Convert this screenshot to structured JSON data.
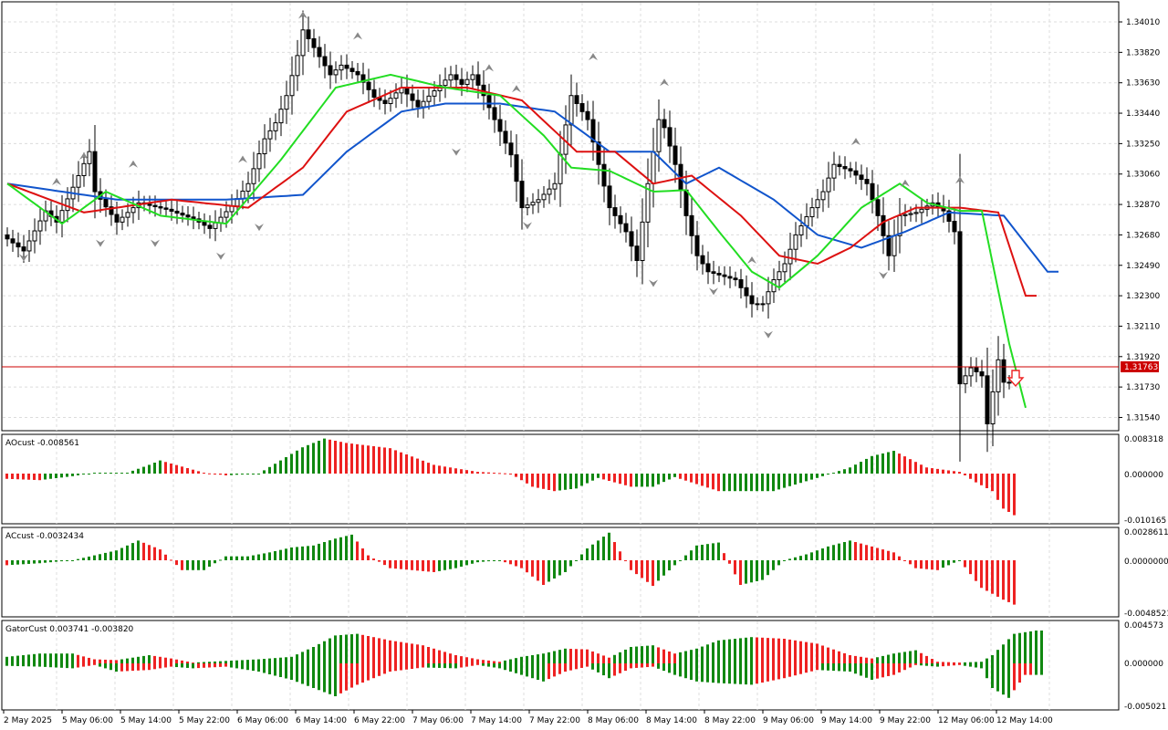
{
  "colors": {
    "background": "#ffffff",
    "grid": "#dcdcdc",
    "bull_candle": "#000000",
    "bear_candle": "#000000",
    "ma_fast": "#22dd22",
    "ma_mid": "#dd1111",
    "ma_slow": "#1155cc",
    "price_line": "#cc0000",
    "hist_up": "#118811",
    "hist_down": "#ee2222",
    "fractal": "#888888",
    "signal_arrow": "#ee2222"
  },
  "main_panel": {
    "price_axis_labels": [
      "1.34010",
      "1.33820",
      "1.33630",
      "1.33440",
      "1.33250",
      "1.33060",
      "1.32870",
      "1.32680",
      "1.32490",
      "1.32300",
      "1.32110",
      "1.31920",
      "1.31730",
      "1.31540"
    ],
    "current_price_label": "1.31763",
    "signal": "sell-arrow-icon"
  },
  "oscillators": [
    {
      "name": "AOcust -0.008561",
      "axis_labels": [
        "0.008318",
        "0.000000",
        "-0.010165"
      ]
    },
    {
      "name": "ACcust -0.0032434",
      "axis_labels": [
        "0.0028611",
        "0.0000000",
        "-0.0048521"
      ]
    },
    {
      "name": "GatorCust 0.003741 -0.003820",
      "axis_labels": [
        "0.004573",
        "0.000000",
        "-0.005021"
      ]
    }
  ],
  "time_axis": [
    "2 May 2025",
    "5 May 06:00",
    "5 May 14:00",
    "5 May 22:00",
    "6 May 06:00",
    "6 May 14:00",
    "6 May 22:00",
    "7 May 06:00",
    "7 May 14:00",
    "7 May 22:00",
    "8 May 06:00",
    "8 May 14:00",
    "8 May 22:00",
    "9 May 06:00",
    "9 May 14:00",
    "9 May 22:00",
    "12 May 06:00",
    "12 May 14:00"
  ],
  "chart_data": {
    "type": "candlestick",
    "timeframe_note": "",
    "price_anchors": [
      [
        0,
        1.3268
      ],
      [
        4,
        1.3258
      ],
      [
        8,
        1.3283
      ],
      [
        10,
        1.3276
      ],
      [
        14,
        1.3305
      ],
      [
        16,
        1.332
      ],
      [
        17,
        1.3295
      ],
      [
        21,
        1.3276
      ],
      [
        25,
        1.3288
      ],
      [
        30,
        1.3284
      ],
      [
        35,
        1.3278
      ],
      [
        38,
        1.3272
      ],
      [
        42,
        1.3286
      ],
      [
        45,
        1.33
      ],
      [
        48,
        1.3328
      ],
      [
        50,
        1.3338
      ],
      [
        52,
        1.3355
      ],
      [
        54,
        1.338
      ],
      [
        55,
        1.3396
      ],
      [
        57,
        1.3385
      ],
      [
        60,
        1.3368
      ],
      [
        62,
        1.3374
      ],
      [
        65,
        1.3368
      ],
      [
        68,
        1.3354
      ],
      [
        70,
        1.335
      ],
      [
        73,
        1.336
      ],
      [
        76,
        1.3348
      ],
      [
        79,
        1.3358
      ],
      [
        82,
        1.3368
      ],
      [
        84,
        1.3362
      ],
      [
        86,
        1.3368
      ],
      [
        88,
        1.3355
      ],
      [
        90,
        1.334
      ],
      [
        93,
        1.3318
      ],
      [
        95,
        1.3285
      ],
      [
        98,
        1.329
      ],
      [
        101,
        1.33
      ],
      [
        104,
        1.3355
      ],
      [
        107,
        1.334
      ],
      [
        109,
        1.3312
      ],
      [
        111,
        1.3285
      ],
      [
        114,
        1.327
      ],
      [
        116,
        1.3252
      ],
      [
        118,
        1.33
      ],
      [
        120,
        1.334
      ],
      [
        121,
        1.3335
      ],
      [
        123,
        1.3312
      ],
      [
        125,
        1.328
      ],
      [
        127,
        1.3255
      ],
      [
        129,
        1.3245
      ],
      [
        131,
        1.3243
      ],
      [
        134,
        1.324
      ],
      [
        137,
        1.3225
      ],
      [
        139,
        1.3225
      ],
      [
        141,
        1.324
      ],
      [
        143,
        1.325
      ],
      [
        145,
        1.3268
      ],
      [
        148,
        1.3285
      ],
      [
        150,
        1.3295
      ],
      [
        152,
        1.3312
      ],
      [
        155,
        1.3308
      ],
      [
        158,
        1.33
      ],
      [
        160,
        1.328
      ],
      [
        162,
        1.3255
      ],
      [
        164,
        1.328
      ],
      [
        167,
        1.3282
      ],
      [
        170,
        1.3288
      ],
      [
        172,
        1.3283
      ],
      [
        174,
        1.327
      ],
      [
        175,
        1.3175
      ],
      [
        177,
        1.3185
      ],
      [
        179,
        1.318
      ],
      [
        180,
        1.315
      ],
      [
        182,
        1.319
      ],
      [
        183,
        1.3176
      ]
    ],
    "ma_fast_anchors": [
      [
        0,
        1.33
      ],
      [
        10,
        1.3275
      ],
      [
        18,
        1.3295
      ],
      [
        28,
        1.328
      ],
      [
        40,
        1.3275
      ],
      [
        50,
        1.3315
      ],
      [
        60,
        1.336
      ],
      [
        70,
        1.3368
      ],
      [
        80,
        1.336
      ],
      [
        90,
        1.3355
      ],
      [
        98,
        1.333
      ],
      [
        103,
        1.331
      ],
      [
        110,
        1.3308
      ],
      [
        118,
        1.3295
      ],
      [
        124,
        1.3296
      ],
      [
        130,
        1.327
      ],
      [
        136,
        1.3245
      ],
      [
        141,
        1.3235
      ],
      [
        148,
        1.3255
      ],
      [
        156,
        1.3285
      ],
      [
        163,
        1.33
      ],
      [
        168,
        1.3288
      ],
      [
        174,
        1.3283
      ],
      [
        178,
        1.3283
      ],
      [
        183,
        1.32
      ],
      [
        186,
        1.316
      ]
    ],
    "ma_mid_anchors": [
      [
        0,
        1.33
      ],
      [
        14,
        1.3282
      ],
      [
        30,
        1.329
      ],
      [
        44,
        1.3285
      ],
      [
        54,
        1.331
      ],
      [
        62,
        1.3345
      ],
      [
        72,
        1.336
      ],
      [
        84,
        1.336
      ],
      [
        94,
        1.3352
      ],
      [
        104,
        1.332
      ],
      [
        111,
        1.332
      ],
      [
        118,
        1.33
      ],
      [
        125,
        1.3305
      ],
      [
        134,
        1.328
      ],
      [
        141,
        1.3255
      ],
      [
        148,
        1.325
      ],
      [
        154,
        1.326
      ],
      [
        160,
        1.3276
      ],
      [
        166,
        1.3285
      ],
      [
        174,
        1.3285
      ],
      [
        181,
        1.3282
      ],
      [
        186,
        1.323
      ]
    ],
    "ma_slow_anchors": [
      [
        0,
        1.33
      ],
      [
        20,
        1.329
      ],
      [
        40,
        1.329
      ],
      [
        54,
        1.3293
      ],
      [
        62,
        1.332
      ],
      [
        72,
        1.3345
      ],
      [
        80,
        1.335
      ],
      [
        90,
        1.335
      ],
      [
        100,
        1.3345
      ],
      [
        110,
        1.332
      ],
      [
        118,
        1.332
      ],
      [
        124,
        1.33
      ],
      [
        130,
        1.331
      ],
      [
        140,
        1.329
      ],
      [
        148,
        1.3268
      ],
      [
        156,
        1.326
      ],
      [
        164,
        1.327
      ],
      [
        172,
        1.3282
      ],
      [
        182,
        1.328
      ],
      [
        190,
        1.3245
      ]
    ],
    "fractals_up": [
      [
        9,
        1.3299
      ],
      [
        14,
        1.3315
      ],
      [
        23,
        1.331
      ],
      [
        43,
        1.3313
      ],
      [
        54,
        1.3403
      ],
      [
        64,
        1.339
      ],
      [
        88,
        1.337
      ],
      [
        93,
        1.3357
      ],
      [
        107,
        1.3377
      ],
      [
        120,
        1.3361
      ],
      [
        136,
        1.325
      ],
      [
        155,
        1.3324
      ],
      [
        164,
        1.3298
      ],
      [
        174,
        1.33
      ]
    ],
    "fractals_down": [
      [
        3,
        1.3256
      ],
      [
        17,
        1.3265
      ],
      [
        27,
        1.3265
      ],
      [
        39,
        1.3257
      ],
      [
        46,
        1.3275
      ],
      [
        82,
        1.3322
      ],
      [
        95,
        1.3276
      ],
      [
        118,
        1.324
      ],
      [
        129,
        1.3235
      ],
      [
        139,
        1.3208
      ],
      [
        160,
        1.3245
      ]
    ],
    "ao_envelope": [
      [
        0,
        -0.0012
      ],
      [
        6,
        -0.0015
      ],
      [
        12,
        -0.0006
      ],
      [
        16,
        0.0002
      ],
      [
        22,
        0.0002
      ],
      [
        26,
        0.002
      ],
      [
        28,
        0.003
      ],
      [
        32,
        0.0016
      ],
      [
        36,
        0.0002
      ],
      [
        40,
        -0.0004
      ],
      [
        46,
        0.0
      ],
      [
        50,
        0.003
      ],
      [
        54,
        0.006
      ],
      [
        58,
        0.008
      ],
      [
        62,
        0.007
      ],
      [
        70,
        0.0058
      ],
      [
        78,
        0.002
      ],
      [
        86,
        0.0004
      ],
      [
        92,
        0.0
      ],
      [
        96,
        -0.003
      ],
      [
        100,
        -0.004
      ],
      [
        104,
        -0.0034
      ],
      [
        108,
        -0.001
      ],
      [
        114,
        -0.003
      ],
      [
        118,
        -0.003
      ],
      [
        122,
        -0.0008
      ],
      [
        130,
        -0.004
      ],
      [
        134,
        -0.004
      ],
      [
        140,
        -0.004
      ],
      [
        148,
        -0.001
      ],
      [
        154,
        0.0014
      ],
      [
        158,
        0.004
      ],
      [
        162,
        0.0052
      ],
      [
        168,
        0.0014
      ],
      [
        174,
        0.0004
      ],
      [
        177,
        -0.002
      ],
      [
        180,
        -0.004
      ],
      [
        182,
        -0.008
      ],
      [
        184,
        -0.0095
      ]
    ],
    "ac_envelope": [
      [
        0,
        -0.0005
      ],
      [
        6,
        -0.0003
      ],
      [
        12,
        0.0
      ],
      [
        16,
        0.0005
      ],
      [
        20,
        0.001
      ],
      [
        24,
        0.002
      ],
      [
        28,
        0.0011
      ],
      [
        32,
        -0.001
      ],
      [
        36,
        -0.001
      ],
      [
        40,
        0.0004
      ],
      [
        44,
        0.0004
      ],
      [
        48,
        0.0008
      ],
      [
        52,
        0.0013
      ],
      [
        56,
        0.0015
      ],
      [
        60,
        0.0022
      ],
      [
        63,
        0.0026
      ],
      [
        66,
        0.0005
      ],
      [
        70,
        -0.0008
      ],
      [
        74,
        -0.001
      ],
      [
        78,
        -0.0012
      ],
      [
        82,
        -0.0008
      ],
      [
        86,
        -0.0002
      ],
      [
        90,
        0.0
      ],
      [
        94,
        -0.0008
      ],
      [
        98,
        -0.0025
      ],
      [
        102,
        -0.0012
      ],
      [
        106,
        0.0012
      ],
      [
        110,
        0.0028
      ],
      [
        114,
        -0.001
      ],
      [
        118,
        -0.0026
      ],
      [
        122,
        -0.0005
      ],
      [
        126,
        0.0015
      ],
      [
        130,
        0.0018
      ],
      [
        134,
        -0.0025
      ],
      [
        138,
        -0.002
      ],
      [
        142,
        0.0
      ],
      [
        146,
        0.0006
      ],
      [
        150,
        0.0014
      ],
      [
        154,
        0.002
      ],
      [
        158,
        0.0014
      ],
      [
        162,
        0.0008
      ],
      [
        166,
        -0.0008
      ],
      [
        170,
        -0.001
      ],
      [
        174,
        0.0
      ],
      [
        178,
        -0.0028
      ],
      [
        182,
        -0.004
      ],
      [
        184,
        -0.0045
      ]
    ],
    "gator_upper": [
      [
        0,
        0.0008
      ],
      [
        6,
        0.0012
      ],
      [
        12,
        0.0012
      ],
      [
        16,
        0.0005
      ],
      [
        20,
        0.0004
      ],
      [
        26,
        0.001
      ],
      [
        30,
        0.0006
      ],
      [
        34,
        0.0001
      ],
      [
        40,
        0.0003
      ],
      [
        46,
        0.0005
      ],
      [
        52,
        0.0008
      ],
      [
        56,
        0.002
      ],
      [
        60,
        0.0034
      ],
      [
        64,
        0.0036
      ],
      [
        70,
        0.0028
      ],
      [
        76,
        0.0022
      ],
      [
        82,
        0.001
      ],
      [
        86,
        0.0005
      ],
      [
        90,
        0.0002
      ],
      [
        94,
        0.0008
      ],
      [
        98,
        0.0012
      ],
      [
        102,
        0.0018
      ],
      [
        106,
        0.0017
      ],
      [
        110,
        0.0007
      ],
      [
        114,
        0.002
      ],
      [
        118,
        0.0022
      ],
      [
        122,
        0.0012
      ],
      [
        126,
        0.0018
      ],
      [
        130,
        0.0028
      ],
      [
        136,
        0.0032
      ],
      [
        142,
        0.003
      ],
      [
        148,
        0.0024
      ],
      [
        154,
        0.001
      ],
      [
        158,
        0.0006
      ],
      [
        162,
        0.0012
      ],
      [
        166,
        0.0016
      ],
      [
        170,
        0.0002
      ],
      [
        174,
        0.0001
      ],
      [
        178,
        0.0002
      ],
      [
        180,
        0.001
      ],
      [
        184,
        0.0036
      ],
      [
        188,
        0.004
      ]
    ],
    "gator_lower": [
      [
        0,
        -0.0003
      ],
      [
        6,
        -0.0004
      ],
      [
        12,
        -0.0006
      ],
      [
        16,
        -0.0002
      ],
      [
        20,
        -0.001
      ],
      [
        26,
        -0.0008
      ],
      [
        30,
        -0.0004
      ],
      [
        34,
        -0.0006
      ],
      [
        40,
        -0.0004
      ],
      [
        46,
        -0.001
      ],
      [
        52,
        -0.002
      ],
      [
        56,
        -0.003
      ],
      [
        60,
        -0.004
      ],
      [
        64,
        -0.0026
      ],
      [
        70,
        -0.001
      ],
      [
        76,
        -0.0005
      ],
      [
        82,
        -0.0006
      ],
      [
        86,
        -0.0002
      ],
      [
        90,
        -0.0006
      ],
      [
        94,
        -0.0014
      ],
      [
        98,
        -0.0022
      ],
      [
        102,
        -0.001
      ],
      [
        106,
        -0.0004
      ],
      [
        110,
        -0.0018
      ],
      [
        114,
        -0.0006
      ],
      [
        118,
        -0.0004
      ],
      [
        122,
        -0.0014
      ],
      [
        126,
        -0.0022
      ],
      [
        130,
        -0.0024
      ],
      [
        136,
        -0.0026
      ],
      [
        142,
        -0.0018
      ],
      [
        148,
        -0.0008
      ],
      [
        154,
        -0.001
      ],
      [
        158,
        -0.002
      ],
      [
        162,
        -0.0014
      ],
      [
        166,
        -0.0002
      ],
      [
        170,
        -0.0004
      ],
      [
        174,
        -0.0002
      ],
      [
        178,
        -0.0006
      ],
      [
        180,
        -0.003
      ],
      [
        183,
        -0.0042
      ],
      [
        186,
        -0.0014
      ]
    ]
  }
}
